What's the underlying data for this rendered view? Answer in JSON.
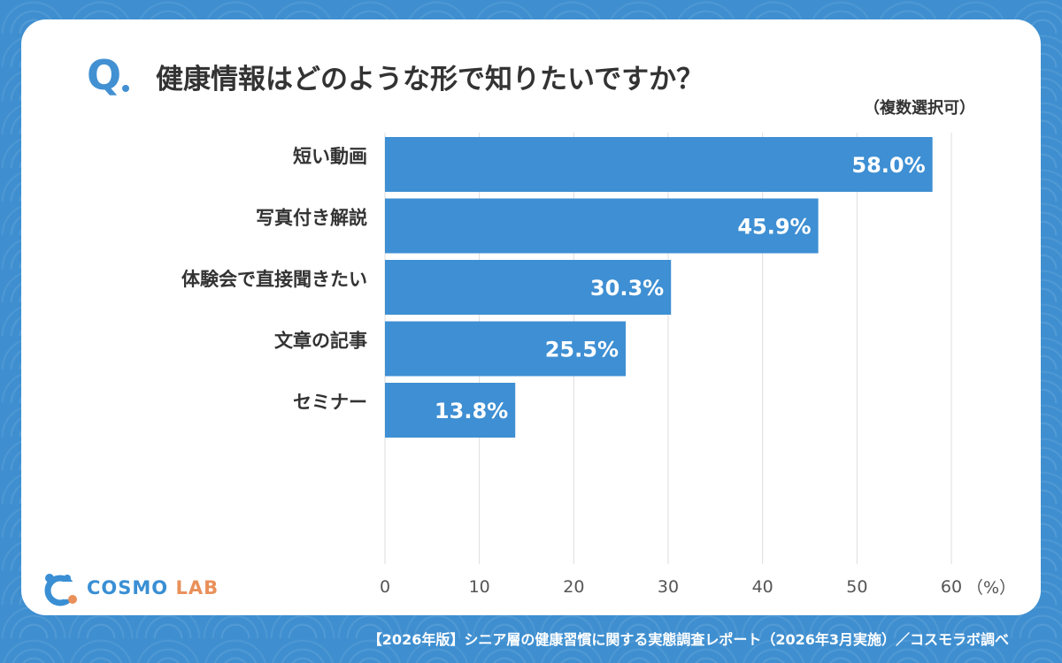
{
  "header": {
    "q_mark": "Q",
    "question": "健康情報はどのような形で知りたいですか？",
    "note": "（複数選択可）"
  },
  "chart_data": {
    "type": "bar",
    "orientation": "horizontal",
    "categories": [
      "短い動画",
      "写真付き解説",
      "体験会で直接聞きたい",
      "文章の記事",
      "セミナー"
    ],
    "values": [
      58.0,
      45.9,
      30.3,
      25.5,
      13.8
    ],
    "value_labels": [
      "58.0%",
      "45.9%",
      "30.3%",
      "25.5%",
      "13.8%"
    ],
    "xlim": [
      0,
      60
    ],
    "x_ticks": [
      0,
      10,
      20,
      30,
      40,
      50,
      60
    ],
    "x_unit": "（%）",
    "grid": true,
    "bar_color": "#3e8fd3",
    "grid_color": "#dddddd"
  },
  "brand": {
    "logo_text_1": "COSMO",
    "logo_text_2": "LAB",
    "primary_color": "#3a8fd4",
    "secondary_color": "#e9905a",
    "logo_icon": "cosmo-lab-logo-icon"
  },
  "footer": {
    "source": "【2026年版】シニア層の健康習慣に関する実態調査レポート（2026年3月実施）／コスモラボ調べ"
  }
}
